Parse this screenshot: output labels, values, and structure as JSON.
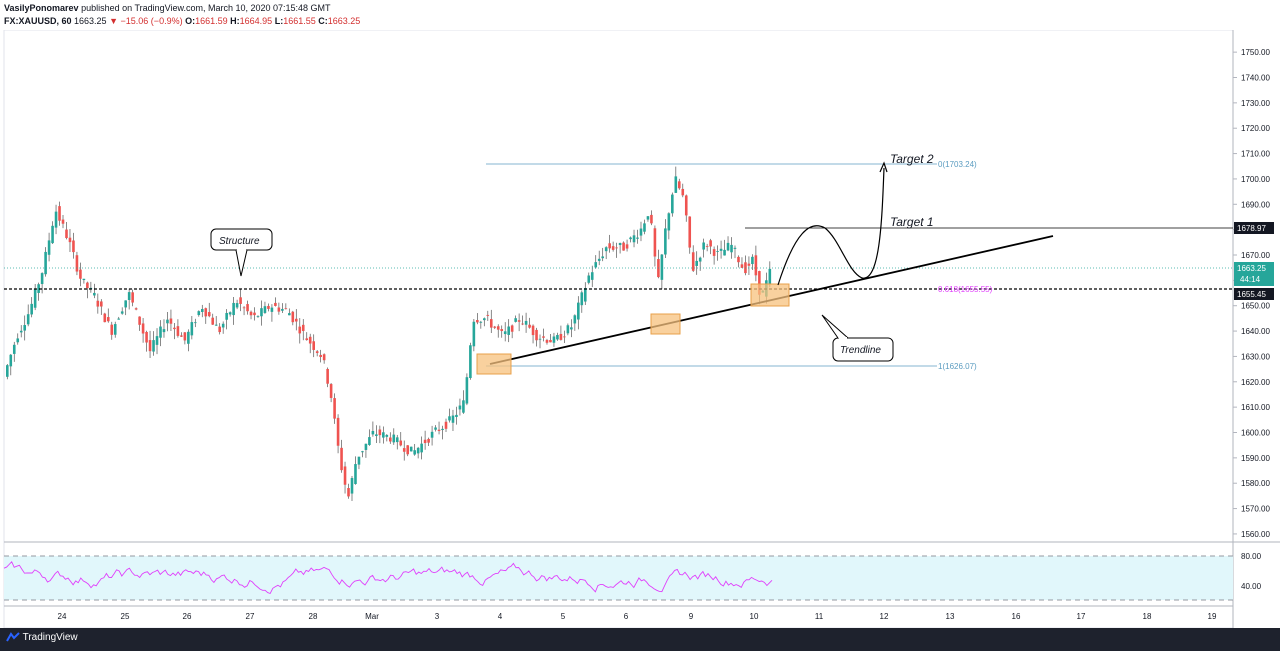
{
  "header": {
    "publisher": "VasilyPonomarev",
    "published_text": "published on TradingView.com, March 10, 2020 07:15:48 GMT",
    "symbol": "FX:XAUUSD, 60",
    "last": "1663.25",
    "change": "−15.06 (−0.9%)",
    "o_label": "O:",
    "o": "1661.59",
    "h_label": "H:",
    "h": "1664.95",
    "l_label": "L:",
    "l": "1661.55",
    "c_label": "C:",
    "c": "1663.25"
  },
  "footer": {
    "brand": "TradingView"
  },
  "colors": {
    "up": "#26a69a",
    "down": "#ef5350",
    "trend": "#000000",
    "box": "#f7c27e",
    "rsi": "#e040fb",
    "rsi_band": "#e1f7fb"
  },
  "chart_data": {
    "type": "candlestick",
    "x_ticks": [
      "24",
      "25",
      "26",
      "27",
      "28",
      "Mar",
      "3",
      "4",
      "5",
      "6",
      "9",
      "10",
      "11",
      "12",
      "13",
      "16",
      "17",
      "18",
      "19"
    ],
    "y_ticks": [
      "1750.00",
      "1740.00",
      "1730.00",
      "1720.00",
      "1710.00",
      "1700.00",
      "1690.00",
      "1680.00",
      "1670.00",
      "1660.00",
      "1650.00",
      "1640.00",
      "1630.00",
      "1620.00",
      "1610.00",
      "1600.00",
      "1590.00",
      "1580.00",
      "1570.00",
      "1560.00"
    ],
    "ylim": [
      1558,
      1754
    ],
    "price_series": [
      {
        "x": 0,
        "y": 1622
      },
      {
        "x": 3,
        "y": 1638
      },
      {
        "x": 6,
        "y": 1648
      },
      {
        "x": 9,
        "y": 1664
      },
      {
        "x": 12,
        "y": 1688
      },
      {
        "x": 15,
        "y": 1676
      },
      {
        "x": 18,
        "y": 1660
      },
      {
        "x": 21,
        "y": 1654
      },
      {
        "x": 25,
        "y": 1640
      },
      {
        "x": 29,
        "y": 1655
      },
      {
        "x": 34,
        "y": 1632
      },
      {
        "x": 38,
        "y": 1645
      },
      {
        "x": 42,
        "y": 1636
      },
      {
        "x": 46,
        "y": 1650
      },
      {
        "x": 50,
        "y": 1640
      },
      {
        "x": 54,
        "y": 1652
      },
      {
        "x": 58,
        "y": 1645
      },
      {
        "x": 62,
        "y": 1650
      },
      {
        "x": 66,
        "y": 1648
      },
      {
        "x": 70,
        "y": 1638
      },
      {
        "x": 74,
        "y": 1630
      },
      {
        "x": 76,
        "y": 1615
      },
      {
        "x": 78,
        "y": 1590
      },
      {
        "x": 80,
        "y": 1574
      },
      {
        "x": 82,
        "y": 1590
      },
      {
        "x": 86,
        "y": 1600
      },
      {
        "x": 90,
        "y": 1598
      },
      {
        "x": 95,
        "y": 1592
      },
      {
        "x": 100,
        "y": 1600
      },
      {
        "x": 104,
        "y": 1605
      },
      {
        "x": 107,
        "y": 1612
      },
      {
        "x": 109,
        "y": 1645
      },
      {
        "x": 112,
        "y": 1645
      },
      {
        "x": 116,
        "y": 1638
      },
      {
        "x": 120,
        "y": 1645
      },
      {
        "x": 124,
        "y": 1638
      },
      {
        "x": 128,
        "y": 1636
      },
      {
        "x": 132,
        "y": 1642
      },
      {
        "x": 136,
        "y": 1662
      },
      {
        "x": 140,
        "y": 1673
      },
      {
        "x": 144,
        "y": 1673
      },
      {
        "x": 148,
        "y": 1680
      },
      {
        "x": 150,
        "y": 1688
      },
      {
        "x": 152,
        "y": 1658
      },
      {
        "x": 154,
        "y": 1683
      },
      {
        "x": 156,
        "y": 1700
      },
      {
        "x": 158,
        "y": 1692
      },
      {
        "x": 160,
        "y": 1664
      },
      {
        "x": 163,
        "y": 1675
      },
      {
        "x": 166,
        "y": 1670
      },
      {
        "x": 169,
        "y": 1674
      },
      {
        "x": 172,
        "y": 1664
      },
      {
        "x": 174,
        "y": 1668
      },
      {
        "x": 176,
        "y": 1653
      },
      {
        "x": 178,
        "y": 1663
      }
    ],
    "levels": [
      {
        "label": "0(1703.24)",
        "value": 1703.24
      },
      {
        "label": "0.618(1655.55)",
        "value": 1655.55
      },
      {
        "label": "1(1626.07)",
        "value": 1626.07
      }
    ],
    "price_labels": [
      {
        "text": "1678.97",
        "value": 1678.97
      },
      {
        "text": "1663.25",
        "value": 1663.25
      },
      {
        "text": "44:14",
        "value": 1660.3
      },
      {
        "text": "1655.45",
        "value": 1655.45
      }
    ],
    "annotations": {
      "target2": "Target 2",
      "target1": "Target 1",
      "structure": "Structure",
      "trendline": "Trendline"
    },
    "rsi": {
      "ticks": [
        "80.00",
        "40.00"
      ],
      "ylim": [
        15,
        100
      ],
      "upper": 80,
      "lower": 20
    }
  }
}
